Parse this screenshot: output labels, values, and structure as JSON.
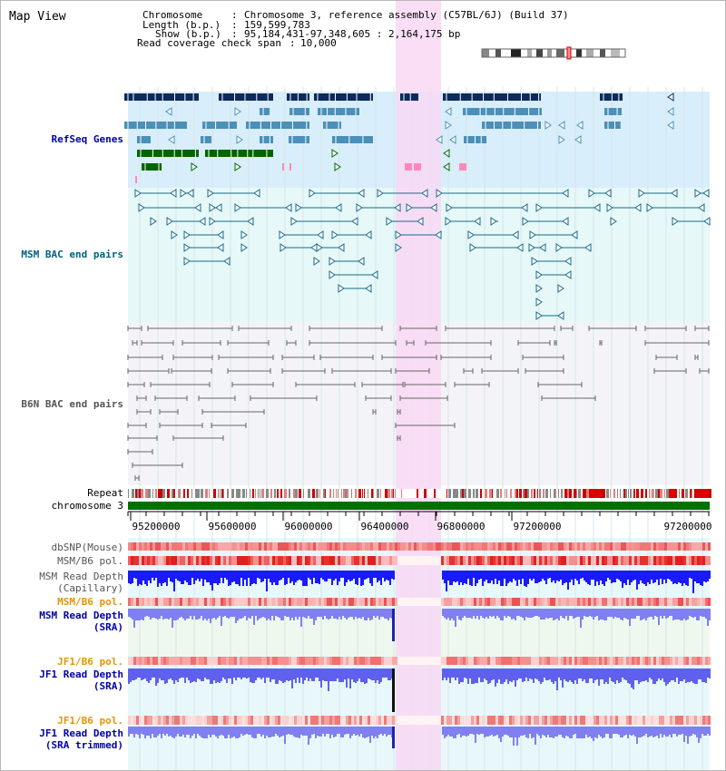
{
  "view_title": "Map View",
  "info": {
    "chromosome_label": "Chromosome",
    "chromosome_value": "Chromosome 3, reference assembly (C57BL/6J) (Build 37)",
    "length_label": "Length (b.p.)",
    "length_value": "159,599,783",
    "show_label": "Show (b.p.)",
    "show_value": "95,184,431-97,348,605 : 2,164,175 bp",
    "coverage_label": "Read coverage check span",
    "coverage_value": "10,000"
  },
  "tracks": {
    "refseq": "RefSeq Genes",
    "msm_bac": "MSM BAC end pairs",
    "b6n_bac": "B6N BAC end pairs",
    "repeat": "Repeat",
    "chromosome": "chromosome 3",
    "dbsnp": "dbSNP(Mouse)",
    "msm_b6_pol_1": "MSM/B6 pol.",
    "msm_depth_cap_1": "MSM Read Depth",
    "msm_depth_cap_2": "(Capillary)",
    "msm_b6_pol_2": "MSM/B6 pol.",
    "msm_depth_sra_1": "MSM Read Depth",
    "msm_depth_sra_2": "(SRA)",
    "jf1_b6_pol_1": "JF1/B6 pol.",
    "jf1_depth_sra_1": "JF1 Read Depth",
    "jf1_depth_sra_2": "(SRA)",
    "jf1_b6_pol_2": "JF1/B6 pol.",
    "jf1_depth_trim_1": "JF1 Read Depth",
    "jf1_depth_trim_2": "(SRA trimmed)"
  },
  "axis": {
    "ticks": [
      "95200000",
      "95600000",
      "96000000",
      "96400000",
      "96800000",
      "97200000"
    ]
  },
  "colors": {
    "refseq_label": "#0000aa",
    "msm_bac_label": "#006080",
    "b6n_label": "#555555",
    "pol_label": "#e69500",
    "depth_label": "#0000aa",
    "highlight": "#f8d8f4",
    "chromosome_bar": "#007000"
  }
}
